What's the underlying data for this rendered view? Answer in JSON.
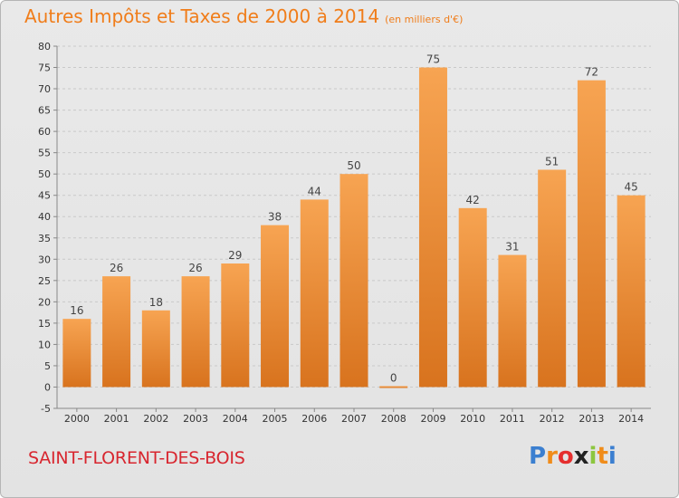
{
  "header": {
    "title": "Autres Impôts et Taxes de 2000 à 2014",
    "unit": "(en milliers d'€)"
  },
  "footer": {
    "commune": "SAINT-FLORENT-DES-BOIS",
    "logo_letters": [
      "P",
      "r",
      "o",
      "x",
      "i",
      "t",
      "i"
    ],
    "logo_colors": [
      "#3b7fd0",
      "#f08c1a",
      "#e52e2e",
      "#222222",
      "#8cc63f",
      "#f08c1a",
      "#3b7fd0"
    ]
  },
  "colors": {
    "bar_top": "#f7a452",
    "bar_bottom": "#d8731e",
    "title": "#f07d1a",
    "commune": "#d8262f"
  },
  "chart_data": {
    "type": "bar",
    "title": "Autres Impôts et Taxes de 2000 à 2014",
    "subtitle": "(en milliers d'€)",
    "categories": [
      "2000",
      "2001",
      "2002",
      "2003",
      "2004",
      "2005",
      "2006",
      "2007",
      "2008",
      "2009",
      "2010",
      "2011",
      "2012",
      "2013",
      "2014"
    ],
    "values": [
      16,
      26,
      18,
      26,
      29,
      38,
      44,
      50,
      0,
      75,
      42,
      31,
      51,
      72,
      45
    ],
    "ylim": [
      -5,
      80
    ],
    "yticks": [
      -5,
      0,
      5,
      10,
      15,
      20,
      25,
      30,
      35,
      40,
      45,
      50,
      55,
      60,
      65,
      70,
      75,
      80
    ],
    "grid": "horizontal dashed",
    "legend": "none"
  }
}
